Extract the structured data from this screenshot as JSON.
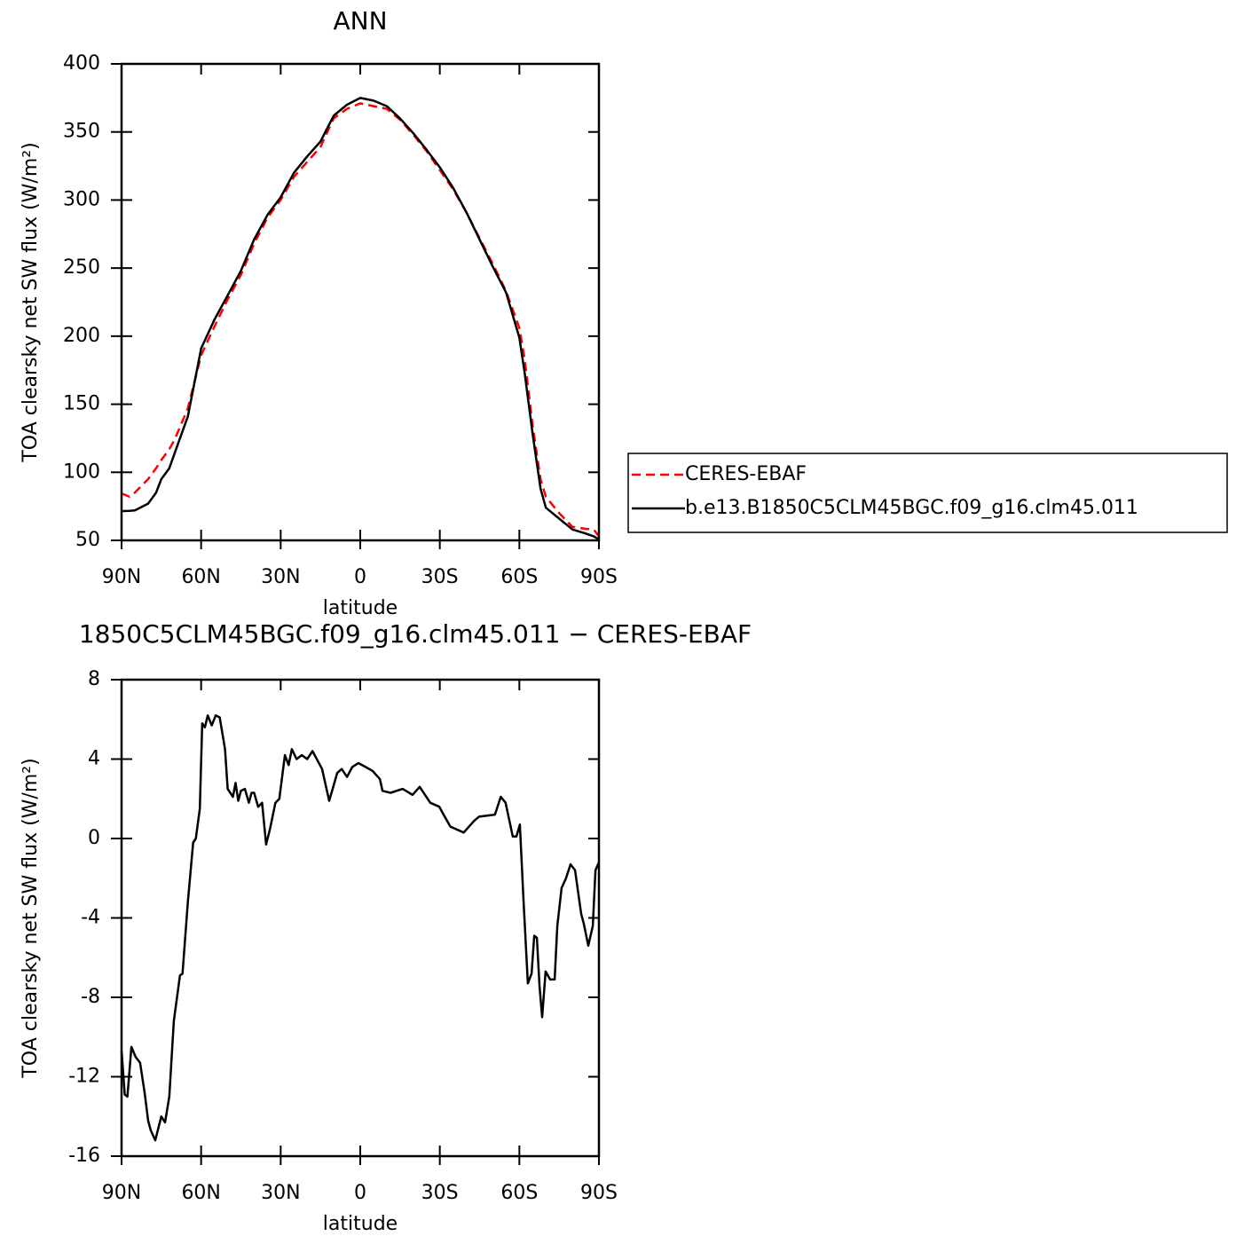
{
  "chart_data": [
    {
      "type": "line",
      "title": "ANN",
      "xlabel": "latitude",
      "ylabel": "TOA clearsky net SW flux (W/m²)",
      "x": [
        90,
        87,
        85,
        80,
        77,
        75,
        72,
        70,
        65,
        60,
        55,
        50,
        45,
        40,
        35,
        30,
        25,
        20,
        15,
        10,
        5,
        0,
        -5,
        -10,
        -15,
        -20,
        -25,
        -30,
        -35,
        -40,
        -45,
        -50,
        -55,
        -60,
        -62,
        -65,
        -68,
        -70,
        -75,
        -80,
        -85,
        -88,
        -90
      ],
      "series": [
        {
          "name": "CERES-EBAF",
          "color": "#ff0000",
          "linestyle": "dashed",
          "values": [
            84.5,
            82,
            85,
            95,
            103,
            109,
            117,
            124,
            147,
            186,
            207,
            227,
            245,
            268,
            287,
            300,
            317,
            328,
            339,
            360,
            367,
            371,
            369,
            367,
            359,
            348,
            336,
            322,
            308,
            291,
            272,
            253,
            233,
            206,
            183,
            134,
            95,
            82,
            70,
            60,
            58.5,
            58,
            53
          ]
        },
        {
          "name": "b.e13.B1850C5CLM45BGC.f09_g16.clm45.011",
          "color": "#000000",
          "linestyle": "solid",
          "values": [
            71.5,
            71.7,
            72,
            77,
            85,
            95,
            103,
            114,
            141,
            191,
            212,
            230,
            248,
            271,
            289,
            302,
            320,
            332,
            343,
            362,
            370,
            375,
            373,
            369,
            360,
            349,
            337,
            324,
            309,
            291,
            271,
            251,
            232,
            199,
            173,
            128,
            88,
            74,
            66,
            58,
            55,
            53,
            50.7
          ]
        }
      ],
      "xlim": [
        90,
        -90
      ],
      "xticks": [
        {
          "value": 90,
          "label": "90N"
        },
        {
          "value": 60,
          "label": "60N"
        },
        {
          "value": 30,
          "label": "30N"
        },
        0,
        {
          "value": -30,
          "label": "30S"
        },
        {
          "value": -60,
          "label": "60S"
        },
        {
          "value": -90,
          "label": "90S"
        }
      ],
      "ylim": [
        50,
        400
      ],
      "yticks": [
        50,
        100,
        150,
        200,
        250,
        300,
        350,
        400
      ],
      "legend": "right"
    },
    {
      "type": "line",
      "title": "1850C5CLM45BGC.f09_g16.clm45.011 − CERES-EBAF",
      "xlabel": "latitude",
      "ylabel": "TOA clearsky net SW flux (W/m²)",
      "x": [
        90,
        88.8,
        87.8,
        86.3,
        84.7,
        83,
        81.3,
        80,
        79,
        77.3,
        75,
        73.6,
        72,
        70.3,
        68,
        67,
        65,
        63,
        62,
        60.5,
        59.6,
        58.6,
        57.5,
        56,
        54.5,
        53,
        51,
        50,
        48,
        47,
        46,
        45,
        43.5,
        42,
        41,
        40,
        38.5,
        37,
        35.5,
        34,
        32,
        30.5,
        28.4,
        27,
        25.8,
        24,
        22,
        20,
        18,
        14.4,
        11.7,
        10.4,
        8.7,
        7,
        5,
        3,
        0.7,
        -2,
        -4.7,
        -7.4,
        -8.4,
        -11.4,
        -16,
        -19.7,
        -22.4,
        -26.4,
        -29.8,
        -31.4,
        -34,
        -39,
        -43,
        -44.8,
        -50.8,
        -53,
        -54.8,
        -57.5,
        -58.9,
        -60.2,
        -61.6,
        -63.2,
        -64.6,
        -65.6,
        -66.6,
        -67.6,
        -68.6,
        -69.9,
        -71.6,
        -73.3,
        -74.3,
        -75.9,
        -77.6,
        -79.3,
        -81,
        -83.3,
        -84.3,
        -86,
        -87.7,
        -88.7,
        -90
      ],
      "values": [
        -10.7,
        -12.9,
        -13.0,
        -10.5,
        -11.0,
        -11.3,
        -12.8,
        -14.2,
        -14.7,
        -15.2,
        -14.0,
        -14.3,
        -13.0,
        -9.2,
        -6.9,
        -6.8,
        -3.2,
        -0.2,
        0,
        1.5,
        5.8,
        5.6,
        6.2,
        5.7,
        6.2,
        6.1,
        4.5,
        2.5,
        2.1,
        2.8,
        1.9,
        2.4,
        2.5,
        1.8,
        2.3,
        2.3,
        1.6,
        1.8,
        -0.3,
        0.5,
        1.8,
        2.0,
        4.2,
        3.7,
        4.5,
        4.0,
        4.2,
        4.0,
        4.4,
        3.5,
        1.9,
        2.5,
        3.3,
        3.5,
        3.1,
        3.6,
        3.8,
        3.6,
        3.4,
        3.0,
        2.4,
        2.3,
        2.5,
        2.2,
        2.6,
        1.8,
        1.6,
        1.2,
        0.6,
        0.3,
        0.9,
        1.1,
        1.2,
        2.1,
        1.8,
        0.1,
        0.1,
        0.7,
        -3.2,
        -7.3,
        -6.8,
        -4.9,
        -5.0,
        -7.4,
        -9.0,
        -6.7,
        -7.1,
        -7.1,
        -4.4,
        -2.5,
        -2.0,
        -1.3,
        -1.6,
        -3.8,
        -4.3,
        -5.4,
        -4.4,
        -1.6,
        -1.2
      ],
      "color": "#000000",
      "xlim": [
        90,
        -90
      ],
      "xticks": [
        {
          "value": 90,
          "label": "90N"
        },
        {
          "value": 60,
          "label": "60N"
        },
        {
          "value": 30,
          "label": "30N"
        },
        0,
        {
          "value": -30,
          "label": "30S"
        },
        {
          "value": -60,
          "label": "60S"
        },
        {
          "value": -90,
          "label": "90S"
        }
      ],
      "ylim": [
        -16,
        8
      ],
      "yticks": [
        -16,
        -12,
        -8,
        -4,
        0,
        4,
        8
      ]
    }
  ]
}
